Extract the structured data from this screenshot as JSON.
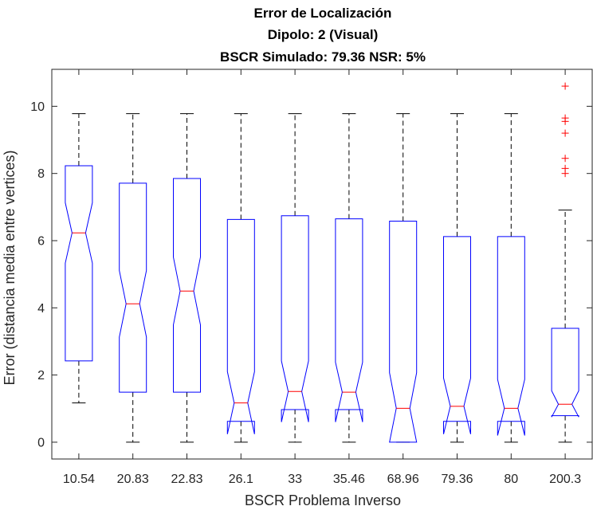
{
  "chart_data": {
    "type": "boxplot",
    "title": [
      "Error de Localización",
      "Dipolo: 2 (Visual)",
      "BSCR Simulado: 79.36 NSR: 5%"
    ],
    "xlabel": "BSCR Problema Inverso",
    "ylabel": "Error (distancia media entre vertices)",
    "categories": [
      "10.54",
      "20.83",
      "22.83",
      "26.1",
      "33",
      "35.46",
      "68.96",
      "79.36",
      "80",
      "200.3"
    ],
    "ylim": [
      -0.5,
      11.1
    ],
    "yticks": [
      0,
      2,
      4,
      6,
      8,
      10
    ],
    "notched": true,
    "grid": false,
    "boxes": [
      {
        "q1": 2.42,
        "median": 6.23,
        "q3": 8.23,
        "notch_low": 5.33,
        "notch_high": 7.13,
        "whisker_low": 1.17,
        "whisker_high": 9.78,
        "outliers": []
      },
      {
        "q1": 1.49,
        "median": 4.12,
        "q3": 7.71,
        "notch_low": 3.13,
        "notch_high": 5.11,
        "whisker_low": 0.0,
        "whisker_high": 9.78,
        "outliers": []
      },
      {
        "q1": 1.49,
        "median": 4.5,
        "q3": 7.85,
        "notch_low": 3.49,
        "notch_high": 5.51,
        "whisker_low": 0.0,
        "whisker_high": 9.78,
        "outliers": []
      },
      {
        "q1": 0.62,
        "median": 1.17,
        "q3": 6.63,
        "notch_low": 0.24,
        "notch_high": 2.1,
        "whisker_low": 0.0,
        "whisker_high": 9.78,
        "outliers": []
      },
      {
        "q1": 0.97,
        "median": 1.51,
        "q3": 6.74,
        "notch_low": 0.6,
        "notch_high": 2.42,
        "whisker_low": 0.0,
        "whisker_high": 9.78,
        "outliers": []
      },
      {
        "q1": 0.97,
        "median": 1.49,
        "q3": 6.65,
        "notch_low": 0.6,
        "notch_high": 2.38,
        "whisker_low": 0.0,
        "whisker_high": 9.78,
        "outliers": []
      },
      {
        "q1": 0.0,
        "median": 1.01,
        "q3": 6.58,
        "notch_low": 0.0,
        "notch_high": 2.07,
        "whisker_low": 0.0,
        "whisker_high": 9.78,
        "outliers": []
      },
      {
        "q1": 0.62,
        "median": 1.07,
        "q3": 6.12,
        "notch_low": 0.24,
        "notch_high": 1.91,
        "whisker_low": 0.0,
        "whisker_high": 9.78,
        "outliers": []
      },
      {
        "q1": 0.62,
        "median": 1.01,
        "q3": 6.12,
        "notch_low": 0.2,
        "notch_high": 1.87,
        "whisker_low": 0.0,
        "whisker_high": 9.78,
        "outliers": []
      },
      {
        "q1": 0.79,
        "median": 1.13,
        "q3": 3.39,
        "notch_low": 0.75,
        "notch_high": 1.53,
        "whisker_low": 0.0,
        "whisker_high": 6.91,
        "outliers": [
          8.0,
          8.15,
          8.45,
          9.2,
          9.55,
          9.65,
          10.6
        ]
      }
    ],
    "colors": {
      "box": "#0000ff",
      "median": "#ff0000",
      "whisker": "#000000",
      "outlier": "#ff0000",
      "axis": "#262626"
    }
  }
}
